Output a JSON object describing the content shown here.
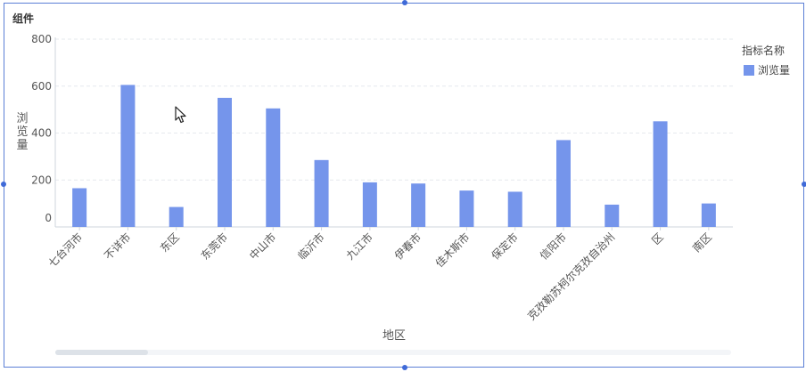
{
  "component_title": "组件",
  "chart_data": {
    "type": "bar",
    "categories": [
      "七台河市",
      "不详市",
      "东区",
      "东莞市",
      "中山市",
      "临沂市",
      "九江市",
      "伊春市",
      "佳木斯市",
      "保定市",
      "信阳市",
      "克孜勒苏柯尔克孜自治州",
      "区",
      "南区"
    ],
    "series": [
      {
        "name": "浏览量",
        "values": [
          165,
          605,
          85,
          550,
          505,
          285,
          190,
          185,
          155,
          150,
          370,
          95,
          450,
          100
        ],
        "color": "#7595eb"
      }
    ],
    "ylabel": "浏览量",
    "xlabel": "地区",
    "yticks": [
      0,
      200,
      400,
      600,
      800
    ],
    "ylim": [
      0,
      800
    ],
    "legend_title": "指标名称",
    "legend_placement": "top-right",
    "grid": true
  },
  "icons": {
    "cursor": "mouse-pointer-icon"
  }
}
